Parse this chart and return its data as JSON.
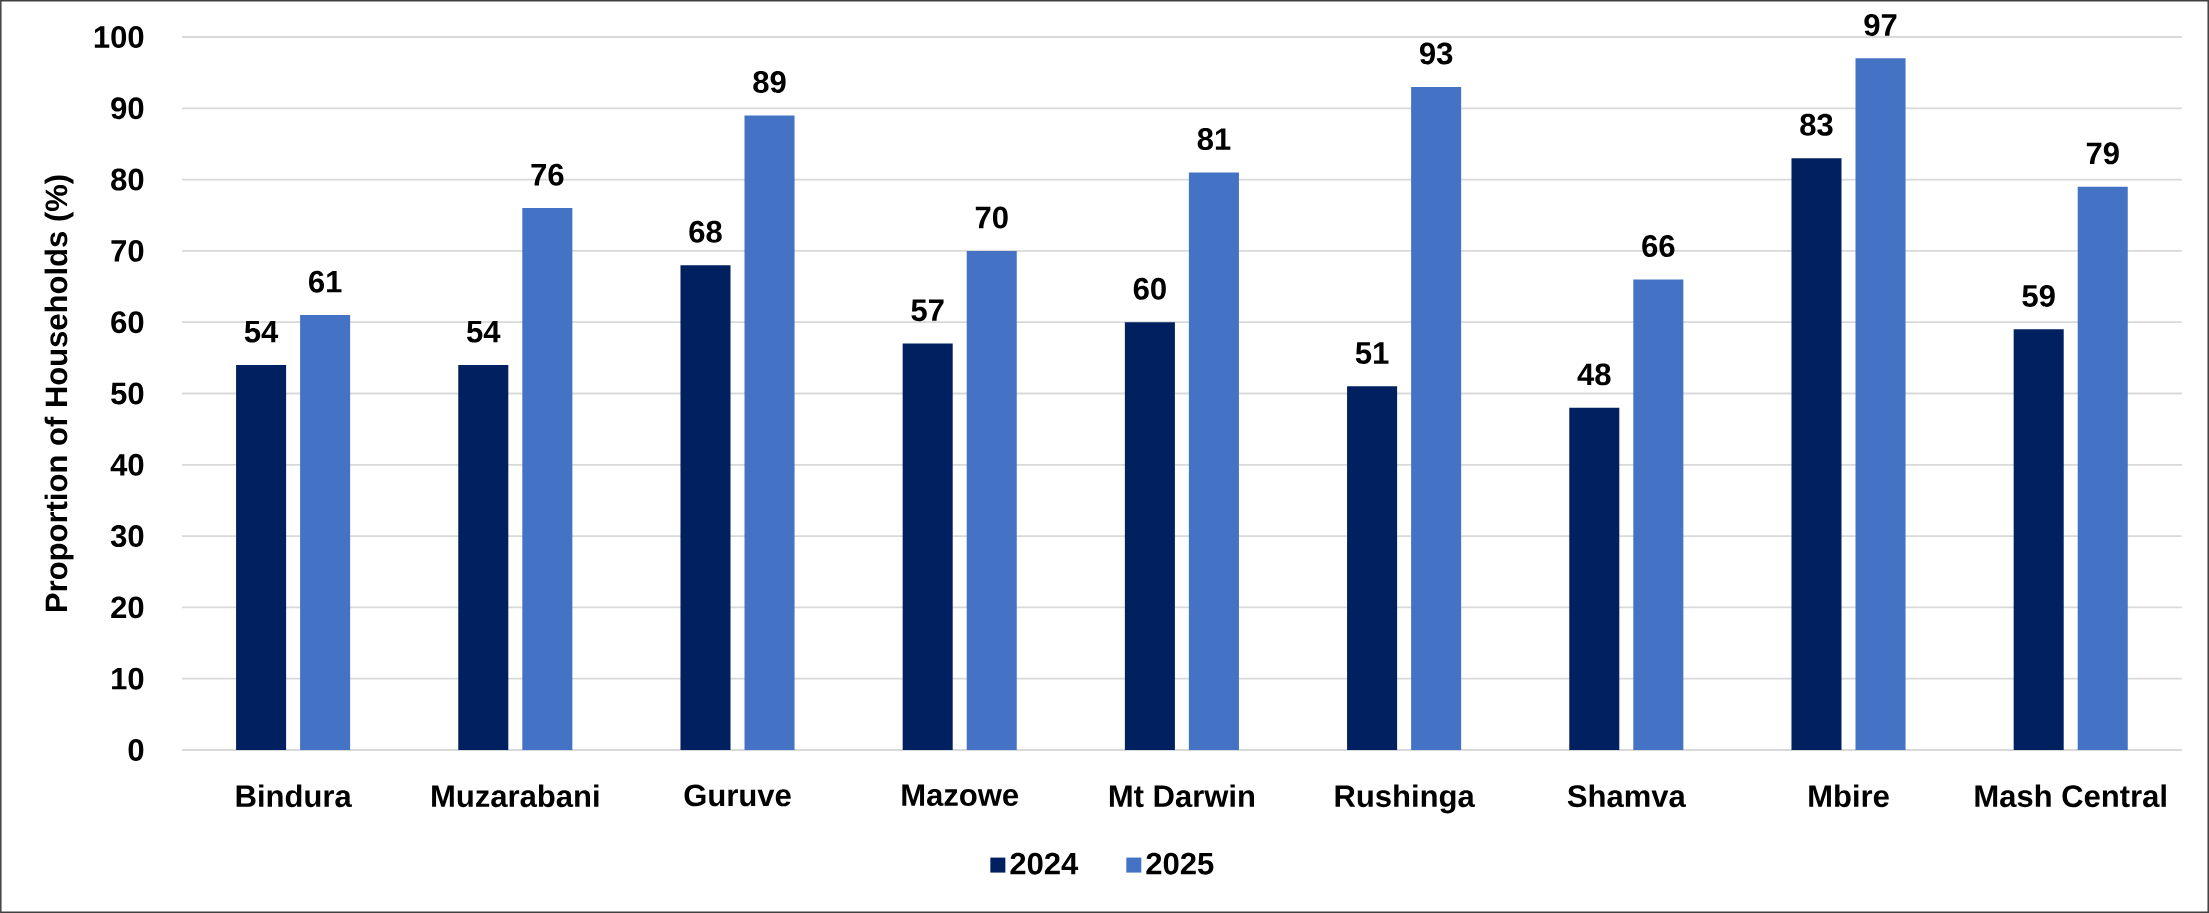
{
  "chart_data": {
    "type": "bar",
    "ylabel": "Proportion of Households (%)",
    "categories": [
      "Bindura",
      "Muzarabani",
      "Guruve",
      "Mazowe",
      "Mt Darwin",
      "Rushinga",
      "Shamva",
      "Mbire",
      "Mash Central"
    ],
    "series": [
      {
        "name": "2024",
        "color": "#002060",
        "values": [
          54,
          54,
          68,
          57,
          60,
          51,
          48,
          83,
          59
        ]
      },
      {
        "name": "2025",
        "color": "#4472c4",
        "values": [
          61,
          76,
          89,
          70,
          81,
          93,
          66,
          97,
          79
        ]
      }
    ],
    "ylim": [
      0,
      100
    ],
    "yticks": [
      0,
      10,
      20,
      30,
      40,
      50,
      60,
      70,
      80,
      90,
      100
    ],
    "grid": "y",
    "legend": "bottom",
    "data_labels": true
  }
}
